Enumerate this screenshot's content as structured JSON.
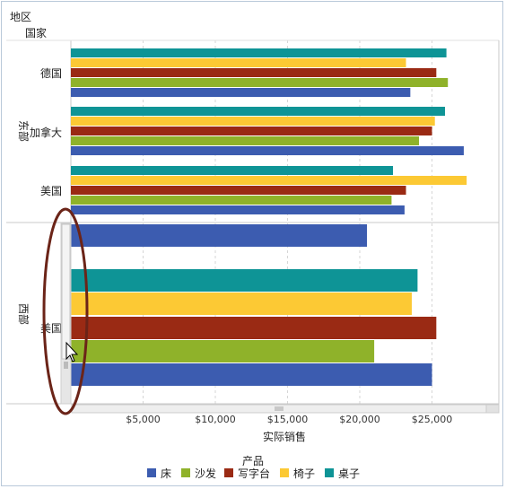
{
  "header": {
    "region_label": "地区",
    "country_label": "国家"
  },
  "chart_data": {
    "type": "bar",
    "orientation": "horizontal",
    "xlabel": "实际销售",
    "xlim": [
      0,
      29000
    ],
    "xticks": [
      5000,
      10000,
      15000,
      20000,
      25000
    ],
    "xtick_labels": [
      "$5,000",
      "$10,000",
      "$15,000",
      "$20,000",
      "$25,000"
    ],
    "legend_title": "产品",
    "legend_position": "bottom",
    "series": [
      {
        "name": "床",
        "color": "#3c5cb0"
      },
      {
        "name": "沙发",
        "color": "#8fb22a"
      },
      {
        "name": "写字台",
        "color": "#9a2a14"
      },
      {
        "name": "椅子",
        "color": "#fcc934"
      },
      {
        "name": "桌子",
        "color": "#0e9496"
      }
    ],
    "regions": [
      {
        "name": "东部",
        "countries": [
          {
            "name": "德国",
            "values": {
              "床": 23500,
              "沙发": 26100,
              "写字台": 25300,
              "椅子": 23200,
              "桌子": 26000
            }
          },
          {
            "name": "加拿大",
            "values": {
              "床": 27200,
              "沙发": 24100,
              "写字台": 25000,
              "椅子": 25200,
              "桌子": 25900
            }
          },
          {
            "name": "美国",
            "values": {
              "床": 23100,
              "沙发": 22200,
              "写字台": 23200,
              "椅子": 27400,
              "桌子": 22300
            }
          }
        ]
      },
      {
        "name": "西部",
        "countries": [
          {
            "name": "美国",
            "values": {
              "床": 25000,
              "沙发": 21000,
              "写字台": 25300,
              "椅子": 23600,
              "桌子": 24000,
              "extra_bed_top": 20500
            }
          }
        ]
      }
    ],
    "grid": "vertical-dashed"
  }
}
